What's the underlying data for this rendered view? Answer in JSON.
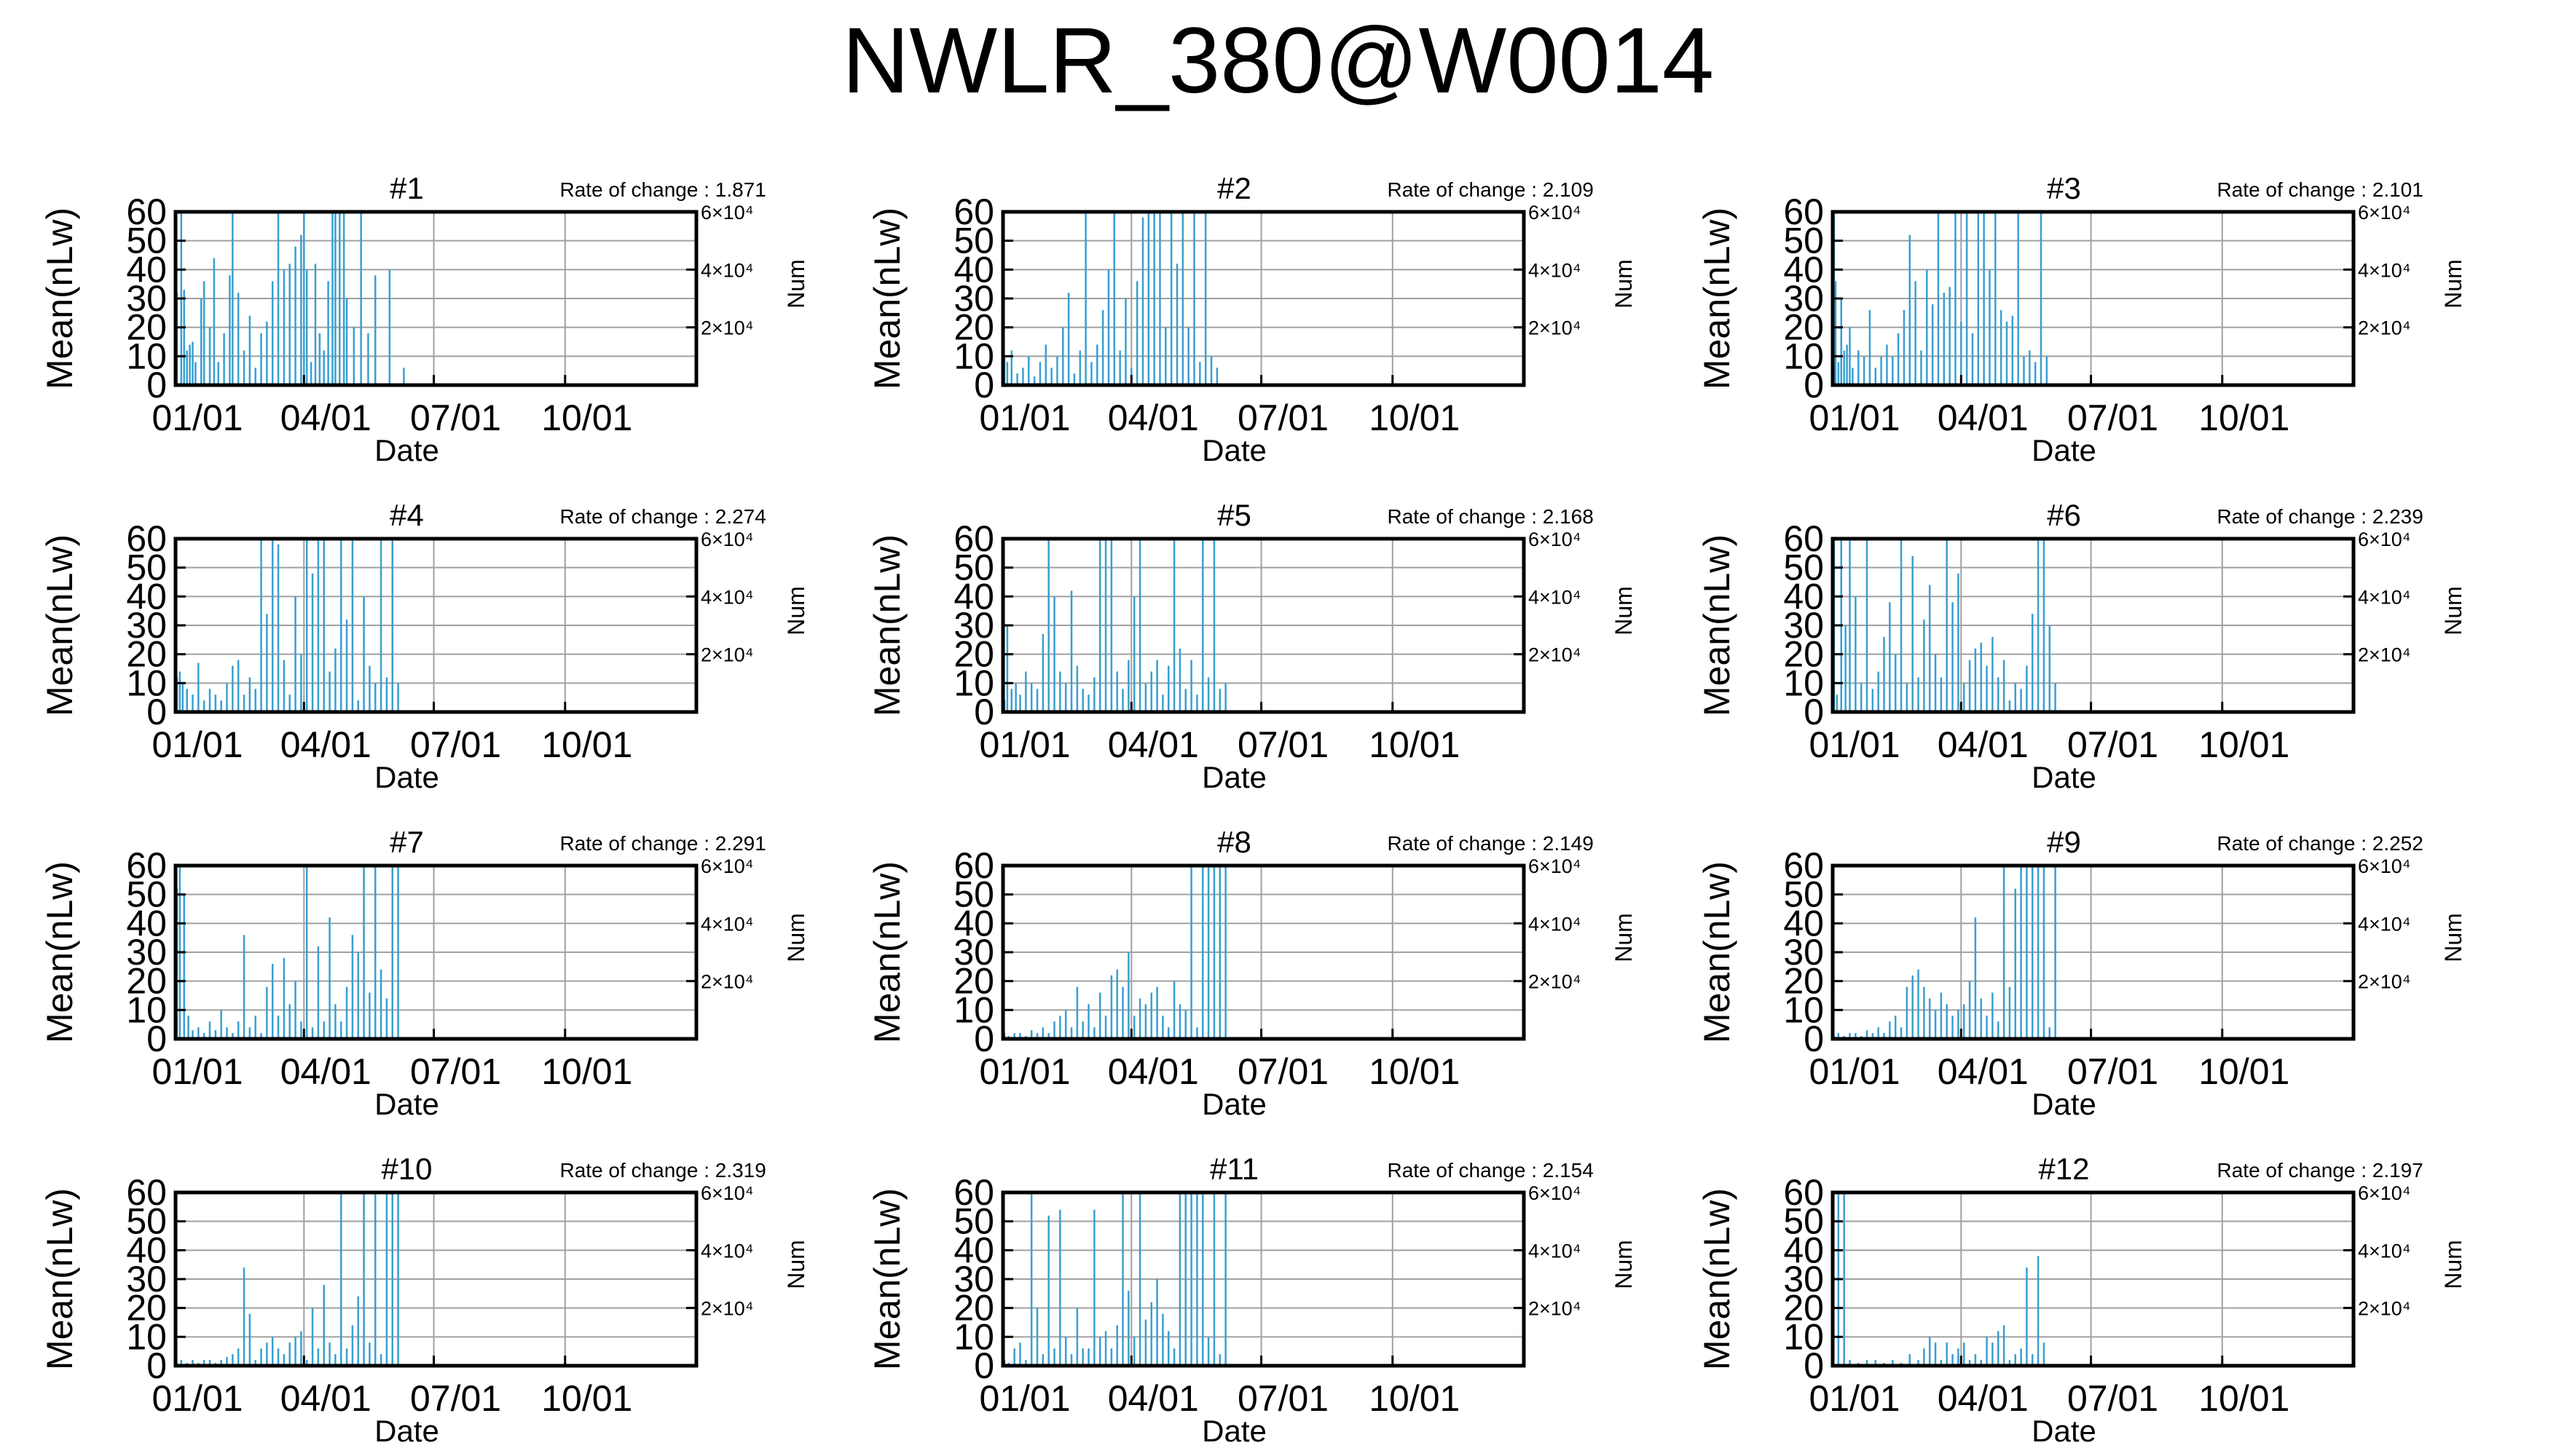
{
  "title": "NWLR_380@W0014",
  "colors": {
    "data": "#3a9fd0",
    "grid": "#a0a0a0",
    "frame": "#000000"
  },
  "axes": {
    "x_label": "Date",
    "x_ticks": [
      "01/01",
      "04/01",
      "07/01",
      "10/01"
    ],
    "x_tick_days": [
      0,
      90,
      181,
      273
    ],
    "x_range_days": [
      0,
      365
    ],
    "y_label": "Mean(nLw)",
    "y_ticks": [
      0,
      10,
      20,
      30,
      40,
      50,
      60
    ],
    "y_range": [
      0,
      60
    ],
    "y2_label": "Num",
    "y2_range": [
      0,
      60000
    ],
    "y2_ticks": [
      {
        "value": 20000,
        "label": "2×10⁴"
      },
      {
        "value": 40000,
        "label": "4×10⁴"
      },
      {
        "value": 60000,
        "label": "6×10⁴"
      }
    ],
    "grid": true
  },
  "chart_data": [
    {
      "type": "bar",
      "title": "#1",
      "rate_text": "Rate of change : 1.871",
      "series": [
        {
          "x": [
            1,
            4,
            6,
            8,
            10,
            12,
            14,
            18,
            20,
            24,
            27,
            30,
            34,
            38,
            40,
            44,
            48,
            52,
            56,
            60,
            64,
            68,
            72,
            76,
            80,
            84,
            88,
            90,
            92,
            95,
            98,
            101,
            104,
            107,
            110,
            112,
            115,
            118,
            120,
            125,
            130,
            135,
            140,
            150,
            160
          ],
          "y": [
            32,
            60,
            33,
            12,
            14,
            15,
            8,
            30,
            36,
            20,
            44,
            8,
            18,
            38,
            60,
            32,
            12,
            24,
            6,
            18,
            22,
            36,
            60,
            40,
            42,
            48,
            52,
            60,
            40,
            8,
            42,
            18,
            12,
            36,
            60,
            60,
            60,
            60,
            30,
            20,
            60,
            18,
            38,
            40,
            6
          ]
        }
      ]
    },
    {
      "type": "bar",
      "title": "#2",
      "rate_text": "Rate of change : 2.109",
      "series": [
        {
          "x": [
            1,
            3,
            6,
            10,
            14,
            18,
            22,
            26,
            30,
            34,
            38,
            42,
            46,
            50,
            54,
            58,
            62,
            66,
            70,
            74,
            78,
            82,
            86,
            90,
            94,
            98,
            102,
            106,
            110,
            114,
            118,
            122,
            126,
            130,
            134,
            138,
            142,
            146,
            150
          ],
          "y": [
            10,
            8,
            12,
            4,
            6,
            10,
            3,
            8,
            14,
            6,
            10,
            20,
            32,
            4,
            12,
            60,
            8,
            14,
            26,
            40,
            60,
            12,
            30,
            6,
            36,
            58,
            60,
            60,
            60,
            20,
            60,
            42,
            60,
            20,
            60,
            8,
            60,
            10,
            6
          ]
        }
      ]
    },
    {
      "type": "bar",
      "title": "#3",
      "rate_text": "Rate of change : 2.101",
      "series": [
        {
          "x": [
            1,
            2,
            4,
            6,
            8,
            10,
            12,
            14,
            18,
            22,
            26,
            30,
            34,
            38,
            42,
            46,
            50,
            54,
            58,
            62,
            66,
            70,
            74,
            78,
            82,
            86,
            90,
            94,
            98,
            102,
            106,
            110,
            114,
            118,
            122,
            126,
            130,
            134,
            138,
            142,
            146,
            150
          ],
          "y": [
            60,
            36,
            8,
            30,
            12,
            14,
            20,
            6,
            12,
            10,
            26,
            6,
            10,
            14,
            10,
            18,
            26,
            52,
            36,
            12,
            40,
            28,
            60,
            32,
            34,
            60,
            22,
            60,
            18,
            60,
            60,
            40,
            60,
            26,
            22,
            24,
            60,
            10,
            12,
            8,
            60,
            10
          ]
        }
      ]
    },
    {
      "type": "bar",
      "title": "#4",
      "rate_text": "Rate of change : 2.274",
      "series": [
        {
          "x": [
            1,
            3,
            5,
            8,
            12,
            16,
            20,
            24,
            28,
            32,
            36,
            40,
            44,
            48,
            52,
            56,
            60,
            64,
            68,
            72,
            76,
            80,
            84,
            88,
            92,
            96,
            100,
            104,
            108,
            112,
            116,
            120,
            124,
            128,
            132,
            136,
            140,
            144,
            148,
            152,
            156
          ],
          "y": [
            12,
            14,
            10,
            8,
            6,
            17,
            4,
            8,
            6,
            4,
            10,
            16,
            18,
            6,
            12,
            8,
            60,
            34,
            60,
            58,
            18,
            6,
            40,
            20,
            60,
            48,
            60,
            60,
            14,
            22,
            60,
            32,
            60,
            4,
            40,
            16,
            10,
            60,
            12,
            60,
            10
          ]
        }
      ]
    },
    {
      "type": "bar",
      "title": "#5",
      "rate_text": "Rate of change : 2.168",
      "series": [
        {
          "x": [
            1,
            3,
            6,
            9,
            12,
            16,
            20,
            24,
            28,
            32,
            36,
            40,
            44,
            48,
            52,
            56,
            60,
            64,
            68,
            72,
            76,
            80,
            84,
            88,
            92,
            96,
            100,
            104,
            108,
            112,
            116,
            120,
            124,
            128,
            132,
            136,
            140,
            144,
            148,
            152,
            156
          ],
          "y": [
            4,
            30,
            8,
            10,
            6,
            14,
            10,
            8,
            27,
            60,
            40,
            14,
            10,
            42,
            16,
            8,
            6,
            12,
            60,
            60,
            60,
            14,
            8,
            18,
            40,
            60,
            10,
            14,
            18,
            6,
            16,
            60,
            22,
            8,
            18,
            6,
            60,
            12,
            60,
            8,
            10
          ]
        }
      ]
    },
    {
      "type": "bar",
      "title": "#6",
      "rate_text": "Rate of change : 2.239",
      "series": [
        {
          "x": [
            1,
            3,
            6,
            9,
            12,
            16,
            20,
            24,
            28,
            32,
            36,
            40,
            44,
            48,
            52,
            56,
            60,
            64,
            68,
            72,
            76,
            80,
            84,
            88,
            92,
            96,
            100,
            104,
            108,
            112,
            116,
            120,
            124,
            128,
            132,
            136,
            140,
            144,
            148,
            152,
            156
          ],
          "y": [
            60,
            6,
            60,
            30,
            60,
            40,
            10,
            60,
            8,
            14,
            26,
            38,
            20,
            60,
            10,
            54,
            12,
            32,
            44,
            20,
            12,
            60,
            38,
            48,
            10,
            18,
            22,
            24,
            16,
            26,
            12,
            18,
            4,
            10,
            8,
            16,
            34,
            60,
            60,
            30,
            10
          ]
        }
      ]
    },
    {
      "type": "bar",
      "title": "#7",
      "rate_text": "Rate of change : 2.291",
      "series": [
        {
          "x": [
            1,
            3,
            6,
            9,
            12,
            16,
            20,
            24,
            28,
            32,
            36,
            40,
            44,
            48,
            52,
            56,
            60,
            64,
            68,
            72,
            76,
            80,
            84,
            88,
            92,
            96,
            100,
            104,
            108,
            112,
            116,
            120,
            124,
            128,
            132,
            136,
            140,
            144,
            148,
            152,
            156
          ],
          "y": [
            52,
            60,
            50,
            8,
            3,
            4,
            2,
            6,
            3,
            10,
            4,
            2,
            6,
            36,
            4,
            8,
            2,
            18,
            26,
            8,
            28,
            12,
            20,
            6,
            60,
            4,
            32,
            6,
            42,
            12,
            6,
            18,
            36,
            30,
            60,
            16,
            60,
            24,
            14,
            60,
            60
          ]
        }
      ]
    },
    {
      "type": "bar",
      "title": "#8",
      "rate_text": "Rate of change : 2.149",
      "series": [
        {
          "x": [
            1,
            4,
            8,
            12,
            16,
            20,
            24,
            28,
            32,
            36,
            40,
            44,
            48,
            52,
            56,
            60,
            64,
            68,
            72,
            76,
            80,
            84,
            88,
            92,
            96,
            100,
            104,
            108,
            112,
            116,
            120,
            124,
            128,
            132,
            136,
            140,
            144,
            148,
            152,
            156
          ],
          "y": [
            2,
            1,
            2,
            2,
            1,
            3,
            2,
            4,
            2,
            6,
            8,
            10,
            4,
            18,
            6,
            12,
            4,
            16,
            8,
            22,
            24,
            18,
            30,
            8,
            14,
            12,
            16,
            18,
            8,
            4,
            20,
            12,
            10,
            60,
            4,
            60,
            60,
            60,
            60,
            60
          ]
        }
      ]
    },
    {
      "type": "bar",
      "title": "#9",
      "rate_text": "Rate of change : 2.252",
      "series": [
        {
          "x": [
            1,
            4,
            8,
            12,
            16,
            20,
            24,
            28,
            32,
            36,
            40,
            44,
            48,
            52,
            56,
            60,
            64,
            68,
            72,
            76,
            80,
            84,
            88,
            92,
            96,
            100,
            104,
            108,
            112,
            116,
            120,
            124,
            128,
            132,
            136,
            140,
            144,
            148,
            152,
            156
          ],
          "y": [
            1,
            2,
            1,
            2,
            2,
            1,
            3,
            2,
            4,
            2,
            6,
            8,
            4,
            18,
            22,
            24,
            18,
            14,
            10,
            16,
            12,
            8,
            10,
            12,
            20,
            42,
            14,
            8,
            16,
            6,
            60,
            18,
            52,
            60,
            60,
            60,
            60,
            60,
            4,
            60
          ]
        }
      ]
    },
    {
      "type": "bar",
      "title": "#10",
      "rate_text": "Rate of change : 2.319",
      "series": [
        {
          "x": [
            1,
            4,
            8,
            12,
            16,
            20,
            24,
            28,
            32,
            36,
            40,
            44,
            48,
            52,
            56,
            60,
            64,
            68,
            72,
            76,
            80,
            84,
            88,
            92,
            96,
            100,
            104,
            108,
            112,
            116,
            120,
            124,
            128,
            132,
            136,
            140,
            144,
            148,
            152,
            156
          ],
          "y": [
            1,
            2,
            1,
            2,
            1,
            2,
            2,
            1,
            2,
            3,
            4,
            6,
            34,
            18,
            2,
            6,
            8,
            10,
            6,
            4,
            8,
            10,
            12,
            2,
            20,
            6,
            28,
            8,
            4,
            60,
            6,
            14,
            24,
            60,
            8,
            60,
            4,
            60,
            60,
            60
          ]
        }
      ]
    },
    {
      "type": "bar",
      "title": "#11",
      "rate_text": "Rate of change : 2.154",
      "series": [
        {
          "x": [
            1,
            4,
            8,
            12,
            16,
            20,
            24,
            28,
            32,
            36,
            40,
            44,
            48,
            52,
            56,
            60,
            64,
            68,
            72,
            76,
            80,
            84,
            88,
            92,
            96,
            100,
            104,
            108,
            112,
            116,
            120,
            124,
            128,
            132,
            136,
            140,
            144,
            148,
            152,
            156
          ],
          "y": [
            2,
            1,
            6,
            8,
            2,
            60,
            20,
            4,
            52,
            6,
            54,
            10,
            4,
            20,
            6,
            6,
            54,
            10,
            12,
            6,
            14,
            60,
            26,
            10,
            60,
            16,
            22,
            30,
            18,
            12,
            6,
            60,
            60,
            60,
            60,
            60,
            10,
            60,
            4,
            60
          ]
        }
      ]
    },
    {
      "type": "bar",
      "title": "#12",
      "rate_text": "Rate of change : 2.197",
      "series": [
        {
          "x": [
            4,
            8,
            12,
            18,
            24,
            30,
            36,
            42,
            48,
            54,
            60,
            64,
            68,
            72,
            76,
            80,
            84,
            88,
            92,
            96,
            100,
            104,
            108,
            112,
            116,
            120,
            124,
            128,
            132,
            136,
            140,
            144,
            148
          ],
          "y": [
            60,
            60,
            2,
            1,
            2,
            2,
            1,
            2,
            1,
            4,
            2,
            6,
            10,
            8,
            2,
            8,
            4,
            6,
            8,
            2,
            4,
            2,
            10,
            8,
            12,
            14,
            2,
            4,
            6,
            34,
            4,
            38,
            8
          ]
        }
      ]
    }
  ]
}
